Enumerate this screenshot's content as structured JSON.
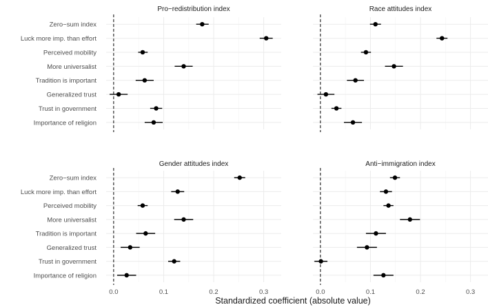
{
  "chart_data": {
    "type": "scatter",
    "xlabel": "Standardized coefficient (absolute value)",
    "xlim": [
      -0.015,
      0.335
    ],
    "xticks": [
      0.0,
      0.1,
      0.2,
      0.3
    ],
    "xtick_labels": [
      "0.0",
      "0.1",
      "0.2",
      "0.3"
    ],
    "reference_line": 0,
    "grid": true,
    "categories": [
      "Zero−sum index",
      "Luck more imp. than effort",
      "Perceived mobility",
      "More universalist",
      "Tradition is important",
      "Generalized trust",
      "Trust in government",
      "Importance of religion"
    ],
    "panels": [
      {
        "title": "Pro−redistribution index",
        "estimates": [
          0.177,
          0.305,
          0.058,
          0.14,
          0.062,
          0.01,
          0.085,
          0.08
        ],
        "ci_low": [
          0.165,
          0.292,
          0.049,
          0.122,
          0.044,
          -0.008,
          0.073,
          0.062
        ],
        "ci_high": [
          0.19,
          0.318,
          0.068,
          0.158,
          0.08,
          0.028,
          0.097,
          0.098
        ]
      },
      {
        "title": "Race attitudes index",
        "estimates": [
          0.11,
          0.243,
          0.091,
          0.147,
          0.07,
          0.011,
          0.032,
          0.065
        ],
        "ci_low": [
          0.099,
          0.232,
          0.081,
          0.129,
          0.053,
          -0.006,
          0.022,
          0.047
        ],
        "ci_high": [
          0.121,
          0.254,
          0.101,
          0.165,
          0.087,
          0.028,
          0.042,
          0.083
        ]
      },
      {
        "title": "Gender attitudes index",
        "estimates": [
          0.252,
          0.128,
          0.058,
          0.14,
          0.064,
          0.033,
          0.121,
          0.026
        ],
        "ci_low": [
          0.241,
          0.115,
          0.048,
          0.121,
          0.045,
          0.014,
          0.109,
          0.007
        ],
        "ci_high": [
          0.263,
          0.141,
          0.068,
          0.159,
          0.083,
          0.052,
          0.133,
          0.045
        ]
      },
      {
        "title": "Anti−immigration index",
        "estimates": [
          0.149,
          0.131,
          0.136,
          0.179,
          0.111,
          0.093,
          0.001,
          0.126
        ],
        "ci_low": [
          0.139,
          0.119,
          0.126,
          0.159,
          0.091,
          0.073,
          -0.012,
          0.106
        ],
        "ci_high": [
          0.159,
          0.143,
          0.146,
          0.199,
          0.131,
          0.113,
          0.014,
          0.146
        ]
      }
    ]
  }
}
